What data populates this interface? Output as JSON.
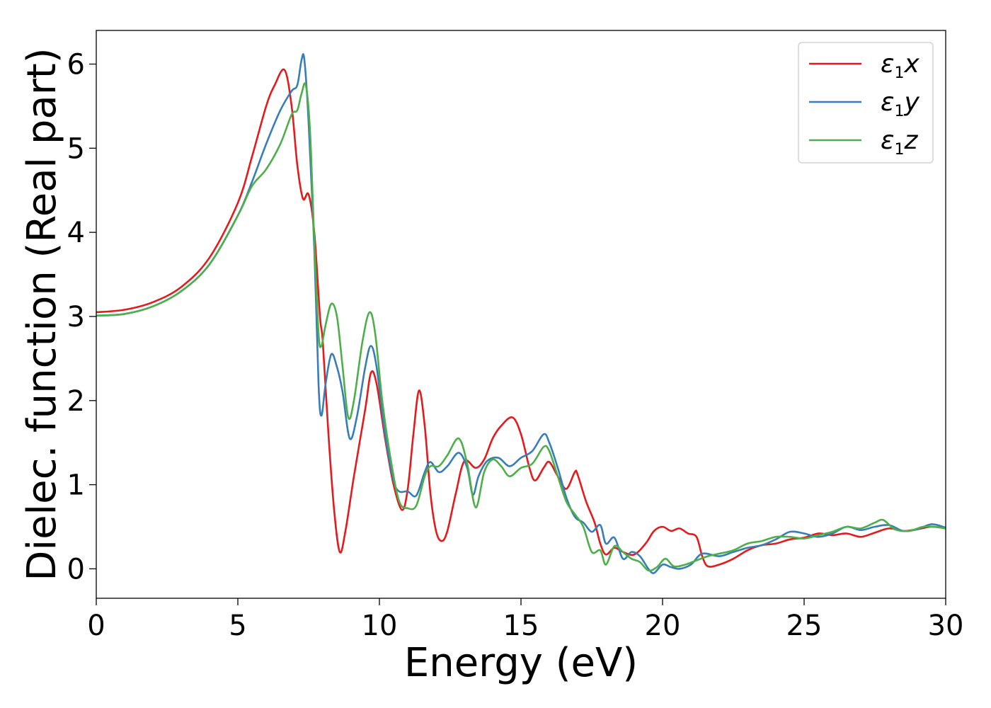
{
  "chart_data": {
    "type": "line",
    "xlabel": "Energy (eV)",
    "ylabel": "Dielec. function (Real part)",
    "xlim": [
      0,
      30
    ],
    "ylim": [
      -0.35,
      6.4
    ],
    "grid": false,
    "legend_position": "top-right",
    "x_ticks": [
      "0",
      "5",
      "10",
      "15",
      "20",
      "25",
      "30"
    ],
    "y_ticks": [
      "0",
      "1",
      "2",
      "3",
      "4",
      "5",
      "6"
    ],
    "series": [
      {
        "name": "ε1x",
        "legend_base": "ε",
        "legend_sub": "1",
        "legend_var": "x",
        "color": "#e41a1c",
        "points": [
          [
            0,
            3.05
          ],
          [
            1,
            3.08
          ],
          [
            2,
            3.17
          ],
          [
            3,
            3.35
          ],
          [
            4,
            3.7
          ],
          [
            5,
            4.35
          ],
          [
            5.5,
            4.9
          ],
          [
            6,
            5.5
          ],
          [
            6.3,
            5.75
          ],
          [
            6.65,
            5.93
          ],
          [
            6.9,
            5.5
          ],
          [
            7.1,
            4.8
          ],
          [
            7.3,
            4.4
          ],
          [
            7.5,
            4.45
          ],
          [
            7.7,
            4.0
          ],
          [
            7.9,
            3.0
          ],
          [
            8.0,
            2.7
          ],
          [
            8.2,
            1.6
          ],
          [
            8.4,
            0.7
          ],
          [
            8.6,
            0.2
          ],
          [
            8.8,
            0.45
          ],
          [
            9.1,
            1.1
          ],
          [
            9.5,
            1.9
          ],
          [
            9.7,
            2.33
          ],
          [
            9.9,
            2.2
          ],
          [
            10.2,
            1.55
          ],
          [
            10.5,
            1.0
          ],
          [
            10.8,
            0.7
          ],
          [
            11.0,
            0.95
          ],
          [
            11.2,
            1.6
          ],
          [
            11.4,
            2.12
          ],
          [
            11.6,
            1.7
          ],
          [
            11.8,
            0.9
          ],
          [
            12.0,
            0.45
          ],
          [
            12.2,
            0.33
          ],
          [
            12.4,
            0.45
          ],
          [
            12.7,
            0.9
          ],
          [
            13.0,
            1.28
          ],
          [
            13.4,
            1.2
          ],
          [
            13.7,
            1.3
          ],
          [
            14.0,
            1.55
          ],
          [
            14.3,
            1.7
          ],
          [
            14.7,
            1.8
          ],
          [
            15.0,
            1.6
          ],
          [
            15.3,
            1.2
          ],
          [
            15.5,
            1.05
          ],
          [
            15.8,
            1.2
          ],
          [
            16.0,
            1.27
          ],
          [
            16.3,
            1.1
          ],
          [
            16.6,
            0.95
          ],
          [
            16.9,
            1.15
          ],
          [
            17.0,
            1.12
          ],
          [
            17.3,
            0.8
          ],
          [
            17.6,
            0.55
          ],
          [
            17.8,
            0.3
          ],
          [
            18.0,
            0.17
          ],
          [
            18.3,
            0.25
          ],
          [
            18.6,
            0.2
          ],
          [
            19.0,
            0.17
          ],
          [
            19.4,
            0.3
          ],
          [
            19.7,
            0.45
          ],
          [
            20.0,
            0.5
          ],
          [
            20.3,
            0.45
          ],
          [
            20.6,
            0.48
          ],
          [
            20.9,
            0.42
          ],
          [
            21.2,
            0.38
          ],
          [
            21.4,
            0.15
          ],
          [
            21.6,
            0.03
          ],
          [
            22.0,
            0.05
          ],
          [
            22.5,
            0.12
          ],
          [
            23.0,
            0.22
          ],
          [
            23.5,
            0.28
          ],
          [
            24.0,
            0.3
          ],
          [
            24.5,
            0.35
          ],
          [
            25.0,
            0.37
          ],
          [
            25.5,
            0.42
          ],
          [
            26.0,
            0.4
          ],
          [
            26.5,
            0.42
          ],
          [
            27.0,
            0.38
          ],
          [
            27.5,
            0.43
          ],
          [
            28.0,
            0.48
          ],
          [
            28.5,
            0.45
          ],
          [
            29.0,
            0.47
          ],
          [
            29.5,
            0.5
          ],
          [
            30.0,
            0.48
          ]
        ]
      },
      {
        "name": "ε1y",
        "legend_base": "ε",
        "legend_sub": "1",
        "legend_var": "y",
        "color": "#377eb8",
        "points": [
          [
            0,
            3.01
          ],
          [
            1,
            3.03
          ],
          [
            2,
            3.12
          ],
          [
            3,
            3.3
          ],
          [
            4,
            3.62
          ],
          [
            5,
            4.2
          ],
          [
            5.5,
            4.6
          ],
          [
            6,
            5.05
          ],
          [
            6.5,
            5.45
          ],
          [
            6.9,
            5.68
          ],
          [
            7.1,
            5.75
          ],
          [
            7.25,
            6.05
          ],
          [
            7.35,
            6.05
          ],
          [
            7.5,
            5.3
          ],
          [
            7.7,
            3.8
          ],
          [
            7.85,
            2.2
          ],
          [
            7.95,
            1.82
          ],
          [
            8.1,
            2.2
          ],
          [
            8.3,
            2.55
          ],
          [
            8.5,
            2.4
          ],
          [
            8.7,
            2.1
          ],
          [
            8.95,
            1.55
          ],
          [
            9.2,
            1.8
          ],
          [
            9.5,
            2.4
          ],
          [
            9.7,
            2.65
          ],
          [
            9.9,
            2.4
          ],
          [
            10.2,
            1.6
          ],
          [
            10.5,
            1.05
          ],
          [
            10.7,
            0.92
          ],
          [
            11.0,
            0.92
          ],
          [
            11.3,
            0.87
          ],
          [
            11.6,
            1.15
          ],
          [
            11.8,
            1.27
          ],
          [
            12.1,
            1.15
          ],
          [
            12.4,
            1.22
          ],
          [
            12.8,
            1.38
          ],
          [
            13.1,
            1.2
          ],
          [
            13.3,
            0.88
          ],
          [
            13.5,
            1.1
          ],
          [
            13.8,
            1.28
          ],
          [
            14.2,
            1.32
          ],
          [
            14.6,
            1.22
          ],
          [
            15.0,
            1.32
          ],
          [
            15.4,
            1.4
          ],
          [
            15.8,
            1.6
          ],
          [
            16.0,
            1.5
          ],
          [
            16.3,
            1.2
          ],
          [
            16.6,
            0.85
          ],
          [
            16.9,
            0.62
          ],
          [
            17.2,
            0.55
          ],
          [
            17.5,
            0.44
          ],
          [
            17.8,
            0.52
          ],
          [
            18.0,
            0.3
          ],
          [
            18.3,
            0.37
          ],
          [
            18.6,
            0.12
          ],
          [
            18.9,
            0.2
          ],
          [
            19.2,
            0.15
          ],
          [
            19.5,
            0.0
          ],
          [
            19.7,
            -0.05
          ],
          [
            20.0,
            0.05
          ],
          [
            20.3,
            0.02
          ],
          [
            20.6,
            0.0
          ],
          [
            21.0,
            0.05
          ],
          [
            21.4,
            0.18
          ],
          [
            22.0,
            0.15
          ],
          [
            22.5,
            0.2
          ],
          [
            23.0,
            0.25
          ],
          [
            23.5,
            0.28
          ],
          [
            24.0,
            0.35
          ],
          [
            24.5,
            0.44
          ],
          [
            25.0,
            0.42
          ],
          [
            25.5,
            0.38
          ],
          [
            26.0,
            0.42
          ],
          [
            26.5,
            0.5
          ],
          [
            27.0,
            0.46
          ],
          [
            27.5,
            0.5
          ],
          [
            28.0,
            0.52
          ],
          [
            28.5,
            0.45
          ],
          [
            29.0,
            0.47
          ],
          [
            29.5,
            0.53
          ],
          [
            30.0,
            0.49
          ]
        ]
      },
      {
        "name": "ε1z",
        "legend_base": "ε",
        "legend_sub": "1",
        "legend_var": "z",
        "color": "#4daf4a",
        "points": [
          [
            0,
            3.01
          ],
          [
            1,
            3.03
          ],
          [
            2,
            3.12
          ],
          [
            3,
            3.3
          ],
          [
            4,
            3.62
          ],
          [
            5,
            4.2
          ],
          [
            5.5,
            4.55
          ],
          [
            6,
            4.75
          ],
          [
            6.5,
            5.05
          ],
          [
            6.9,
            5.4
          ],
          [
            7.1,
            5.45
          ],
          [
            7.25,
            5.65
          ],
          [
            7.4,
            5.75
          ],
          [
            7.55,
            5.2
          ],
          [
            7.7,
            3.9
          ],
          [
            7.85,
            2.8
          ],
          [
            7.95,
            2.65
          ],
          [
            8.1,
            2.9
          ],
          [
            8.3,
            3.15
          ],
          [
            8.5,
            3.0
          ],
          [
            8.7,
            2.4
          ],
          [
            8.9,
            1.8
          ],
          [
            9.1,
            2.0
          ],
          [
            9.4,
            2.7
          ],
          [
            9.65,
            3.05
          ],
          [
            9.85,
            2.8
          ],
          [
            10.1,
            2.0
          ],
          [
            10.4,
            1.3
          ],
          [
            10.7,
            0.8
          ],
          [
            11.0,
            0.72
          ],
          [
            11.3,
            0.75
          ],
          [
            11.6,
            1.1
          ],
          [
            11.8,
            1.22
          ],
          [
            12.1,
            1.22
          ],
          [
            12.4,
            1.35
          ],
          [
            12.8,
            1.55
          ],
          [
            13.1,
            1.25
          ],
          [
            13.4,
            0.73
          ],
          [
            13.7,
            1.15
          ],
          [
            14.0,
            1.3
          ],
          [
            14.3,
            1.22
          ],
          [
            14.6,
            1.1
          ],
          [
            15.0,
            1.2
          ],
          [
            15.4,
            1.25
          ],
          [
            15.8,
            1.45
          ],
          [
            16.0,
            1.4
          ],
          [
            16.3,
            1.1
          ],
          [
            16.6,
            0.8
          ],
          [
            16.9,
            0.65
          ],
          [
            17.2,
            0.5
          ],
          [
            17.5,
            0.2
          ],
          [
            17.8,
            0.22
          ],
          [
            18.0,
            0.05
          ],
          [
            18.3,
            0.27
          ],
          [
            18.6,
            0.2
          ],
          [
            18.9,
            0.12
          ],
          [
            19.2,
            0.08
          ],
          [
            19.5,
            -0.02
          ],
          [
            19.8,
            0.02
          ],
          [
            20.1,
            0.12
          ],
          [
            20.4,
            0.03
          ],
          [
            20.8,
            0.05
          ],
          [
            21.2,
            0.1
          ],
          [
            21.6,
            0.15
          ],
          [
            22.0,
            0.18
          ],
          [
            22.5,
            0.22
          ],
          [
            23.0,
            0.3
          ],
          [
            23.5,
            0.33
          ],
          [
            24.0,
            0.38
          ],
          [
            24.5,
            0.38
          ],
          [
            25.0,
            0.36
          ],
          [
            25.5,
            0.4
          ],
          [
            26.0,
            0.44
          ],
          [
            26.5,
            0.5
          ],
          [
            27.0,
            0.48
          ],
          [
            27.5,
            0.55
          ],
          [
            27.8,
            0.58
          ],
          [
            28.2,
            0.47
          ],
          [
            28.7,
            0.45
          ],
          [
            29.2,
            0.5
          ],
          [
            29.6,
            0.5
          ],
          [
            30.0,
            0.48
          ]
        ]
      }
    ]
  }
}
